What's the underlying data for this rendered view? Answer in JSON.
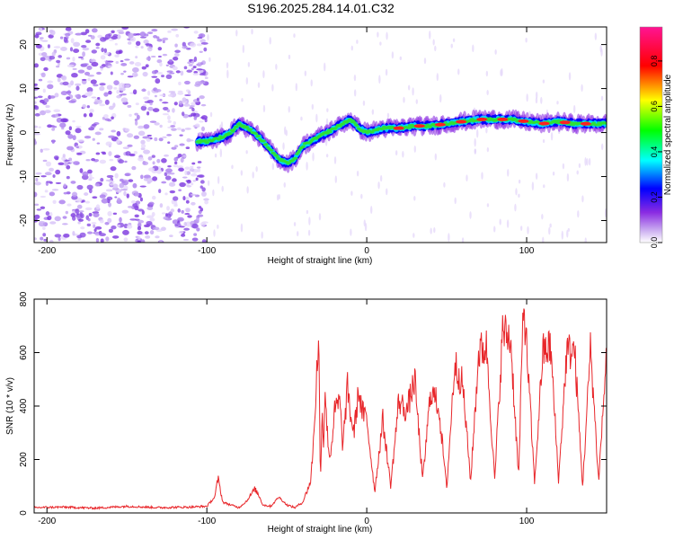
{
  "chart_data": [
    {
      "type": "heatmap",
      "title": "S196.2025.284.14.01.C32",
      "xlabel": "Height of straight line (km)",
      "ylabel": "Frequency (Hz)",
      "xlim": [
        -208,
        150
      ],
      "ylim": [
        -25,
        24
      ],
      "xticks": [
        -200,
        -100,
        0,
        100
      ],
      "yticks": [
        -20,
        -10,
        0,
        10,
        20
      ],
      "colorbar": {
        "label": "Normalized spectral amplitude",
        "range": [
          0,
          0.95
        ],
        "ticks": [
          0,
          0.2,
          0.4,
          0.6,
          0.8
        ],
        "tick_labels": [
          "0.0",
          "0.2",
          "0.4",
          "0.6",
          "0.8"
        ],
        "colors": [
          "#ffffff",
          "#8a2be2",
          "#0000ff",
          "#00ffff",
          "#00ff00",
          "#ffff00",
          "#ff0000",
          "#ff00ff"
        ]
      },
      "noise_region": {
        "x": [
          -208,
          -100
        ],
        "description_value": "scattered"
      },
      "ridge": {
        "x": [
          -106,
          -100,
          -95,
          -90,
          -85,
          -80,
          -75,
          -70,
          -65,
          -60,
          -55,
          -50,
          -45,
          -40,
          -35,
          -30,
          -25,
          -20,
          -15,
          -10,
          -5,
          0,
          10,
          20,
          30,
          40,
          50,
          60,
          70,
          80,
          90,
          100,
          110,
          120,
          130,
          140,
          150
        ],
        "freq": [
          -2,
          -2,
          -1.5,
          -1,
          0,
          2,
          1,
          0,
          -2,
          -4,
          -6,
          -7,
          -6,
          -3,
          -2,
          -1,
          0,
          1,
          2,
          3,
          1,
          0,
          1,
          1,
          1.5,
          1.5,
          2,
          2.5,
          3,
          3,
          3,
          2.5,
          2,
          2.5,
          2,
          2,
          2
        ]
      }
    },
    {
      "type": "line",
      "xlabel": "Height of straight line (km)",
      "ylabel": "SNR (10 * v/v)",
      "xlim": [
        -208,
        150
      ],
      "ylim": [
        0,
        800
      ],
      "xticks": [
        -200,
        -100,
        0,
        100
      ],
      "yticks": [
        0,
        200,
        400,
        600,
        800
      ],
      "color": "#e8262a",
      "series": [
        {
          "name": "SNR",
          "x": [
            -208,
            -190,
            -170,
            -150,
            -130,
            -110,
            -100,
            -95,
            -93,
            -90,
            -85,
            -80,
            -75,
            -70,
            -67,
            -65,
            -60,
            -55,
            -50,
            -45,
            -40,
            -35,
            -33,
            -31,
            -30,
            -29,
            -28,
            -27,
            -26,
            -25,
            -23,
            -20,
            -17,
            -15,
            -12,
            -10,
            -8,
            -5,
            -3,
            0,
            5,
            10,
            15,
            20,
            25,
            30,
            35,
            40,
            45,
            50,
            55,
            60,
            65,
            70,
            75,
            80,
            85,
            90,
            95,
            98,
            100,
            105,
            110,
            115,
            120,
            125,
            130,
            135,
            140,
            145,
            150
          ],
          "values": [
            20,
            22,
            18,
            25,
            20,
            22,
            25,
            60,
            130,
            40,
            30,
            20,
            45,
            90,
            60,
            30,
            25,
            60,
            30,
            20,
            40,
            120,
            300,
            560,
            650,
            100,
            400,
            250,
            480,
            320,
            200,
            380,
            420,
            250,
            470,
            360,
            300,
            460,
            380,
            350,
            80,
            350,
            100,
            420,
            380,
            500,
            120,
            460,
            400,
            90,
            560,
            480,
            120,
            600,
            620,
            120,
            680,
            650,
            130,
            800,
            620,
            110,
            600,
            620,
            120,
            600,
            610,
            100,
            620,
            120,
            600
          ]
        }
      ]
    }
  ]
}
